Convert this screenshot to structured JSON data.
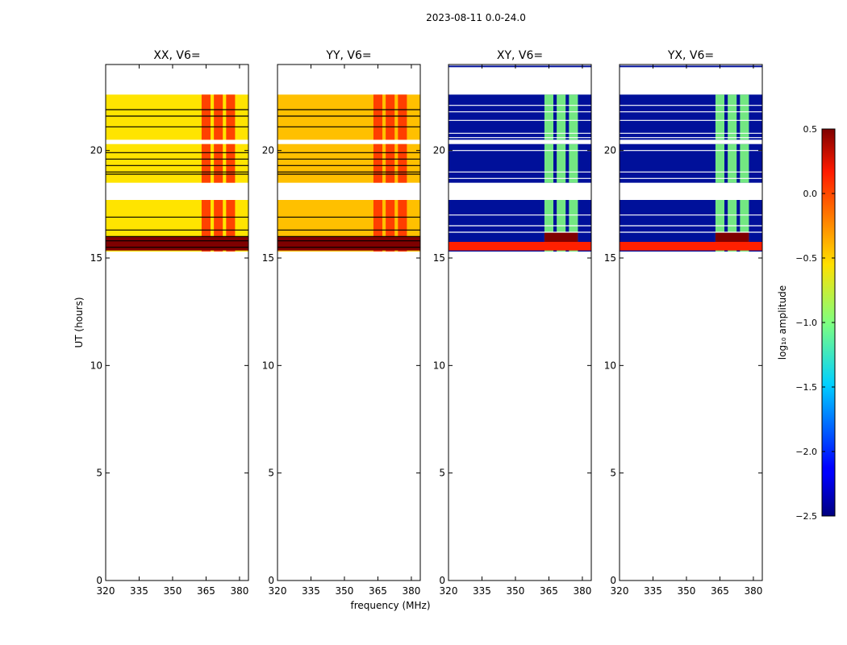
{
  "suptitle": "2023-08-11 0.0-24.0",
  "chart_data": {
    "type": "heatmap",
    "ylabel": "UT (hours)",
    "xlabel": "frequency (MHz)",
    "xlim": [
      320,
      384
    ],
    "ylim": [
      0,
      24
    ],
    "xticks": [
      320,
      335,
      350,
      365,
      380
    ],
    "yticks": [
      0,
      5,
      10,
      15,
      20
    ],
    "panels": [
      {
        "title": "XX, V6=",
        "style": "parallel",
        "bands": [
          [
            22.6,
            20.5
          ],
          [
            20.3,
            18.5
          ],
          [
            17.7,
            15.3
          ]
        ],
        "hlines": [
          21.9,
          21.6,
          21.1,
          19.9,
          19.6,
          19.3,
          19.0,
          18.9,
          16.9,
          16.3,
          16.0,
          15.8,
          15.5
        ]
      },
      {
        "title": "YY, V6=",
        "style": "parallel",
        "bands": [
          [
            22.6,
            20.5
          ],
          [
            20.3,
            18.5
          ],
          [
            17.7,
            15.3
          ]
        ],
        "hlines": [
          21.9,
          21.6,
          21.1,
          19.9,
          19.6,
          19.3,
          19.0,
          18.9,
          16.9,
          16.3,
          16.0,
          15.8,
          15.5
        ]
      },
      {
        "title": "XY, V6=",
        "style": "cross",
        "bands": [
          [
            22.6,
            20.5
          ],
          [
            20.3,
            18.5
          ],
          [
            17.7,
            15.3
          ]
        ],
        "hlines": [
          22.1,
          21.8,
          21.4,
          20.8,
          20.6,
          20.0,
          19.0,
          18.7,
          17.0,
          16.5,
          16.2
        ]
      },
      {
        "title": "YX, V6=",
        "style": "cross",
        "bands": [
          [
            22.6,
            20.5
          ],
          [
            20.3,
            18.5
          ],
          [
            17.7,
            15.3
          ]
        ],
        "hlines": [
          22.1,
          21.8,
          21.4,
          20.8,
          20.6,
          20.0,
          19.0,
          18.7,
          17.0,
          16.5,
          16.2
        ]
      }
    ],
    "colorbar": {
      "label": "log₁₀ amplitude",
      "min": -2.5,
      "max": 0.5,
      "ticks": [
        0.5,
        0.0,
        -0.5,
        -1.0,
        -1.5,
        -2.0,
        -2.5
      ],
      "tick_labels": [
        "0.5",
        "0.0",
        "−0.5",
        "−1.0",
        "−1.5",
        "−2.0",
        "−2.5"
      ]
    }
  },
  "colors": {
    "parallel_base": "#ffe400",
    "parallel_base_yy": "#ffc000",
    "parallel_strip": "#ff3000",
    "cross_base": "#00109a",
    "cross_strip": "#7fff7f",
    "saturated": "#7f0000",
    "line": "#000000"
  }
}
